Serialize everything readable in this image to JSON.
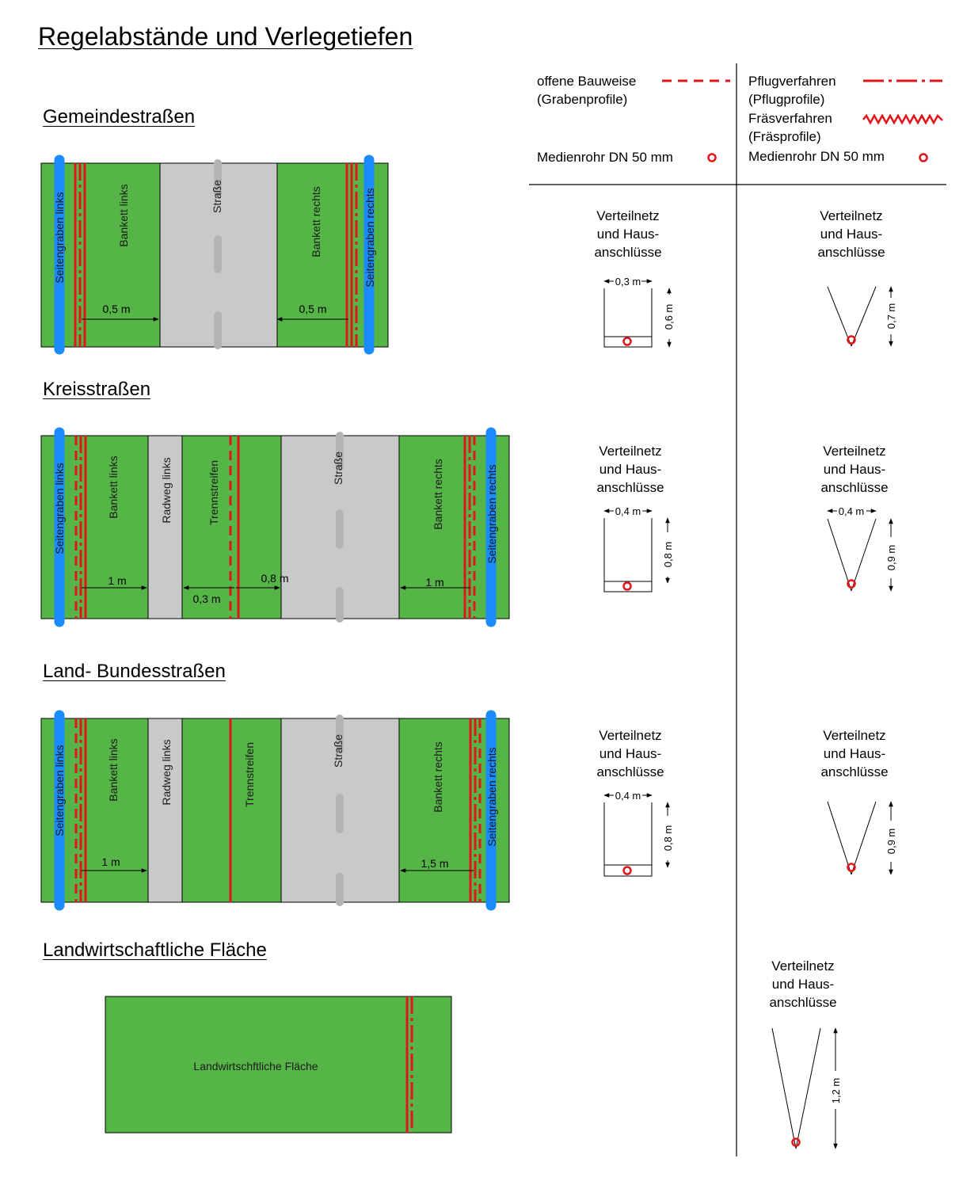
{
  "title": "Regelabstände und Verlegetiefen",
  "colors": {
    "green": "#56b547",
    "grey": "#c8c9cb",
    "blue": "#1a8cff",
    "red": "#e0161b",
    "black": "#000000"
  },
  "legend": {
    "open": {
      "label1": "offene Bauweise",
      "label2": "(Grabenprofile)"
    },
    "plough": {
      "label1": "Pflugverfahren",
      "label2": "(Pflugprofile)"
    },
    "mill": {
      "label1": "Fräsverfahren",
      "label2": "(Fräsprofile)"
    },
    "pipe_left": "Medienrohr DN 50 mm",
    "pipe_right": "Medienrohr DN 50 mm"
  },
  "sections": {
    "gemeinde": {
      "title": "Gemeindestraßen",
      "labels": {
        "ditch_left": "Seitengraben links",
        "bankett_left": "Bankett links",
        "road": "Straße",
        "bankett_right": "Bankett rechts",
        "ditch_right": "Seitengraben rechts"
      },
      "dims": {
        "left": "0,5 m",
        "right": "0,5 m"
      },
      "profile_open": {
        "label": [
          "Verteilnetz",
          "und Haus-",
          "anschlüsse"
        ],
        "width": "0,3 m",
        "depth": "0,6 m"
      },
      "profile_plough": {
        "label": [
          "Verteilnetz",
          "und Haus-",
          "anschlüsse"
        ],
        "depth": "0,7 m"
      }
    },
    "kreis": {
      "title": "Kreisstraßen",
      "labels": {
        "ditch_left": "Seitengraben links",
        "bankett_left": "Bankett links",
        "bike_left": "Radweg links",
        "separator": "Trennstreifen",
        "road": "Straße",
        "bankett_right": "Bankett rechts",
        "ditch_right": "Seitengraben rechts"
      },
      "dims": {
        "left": "1 m",
        "sep_left": "0,3 m",
        "sep_right": "0,8 m",
        "right": "1 m"
      },
      "profile_open": {
        "label": [
          "Verteilnetz",
          "und Haus-",
          "anschlüsse"
        ],
        "width": "0,4 m",
        "depth": "0,8 m"
      },
      "profile_plough": {
        "label": [
          "Verteilnetz",
          "und Haus-",
          "anschlüsse"
        ],
        "width": "0,4 m",
        "depth": "0,9 m"
      }
    },
    "land": {
      "title": "Land- Bundesstraßen",
      "labels": {
        "ditch_left": "Seitengraben links",
        "bankett_left": "Bankett links",
        "bike_left": "Radweg links",
        "separator": "Trennstreifen",
        "road": "Straße",
        "bankett_right": "Bankett rechts",
        "ditch_right": "Seitengraben rechts"
      },
      "dims": {
        "left": "1 m",
        "right": "1,5 m"
      },
      "profile_open": {
        "label": [
          "Verteilnetz",
          "und Haus-",
          "anschlüsse"
        ],
        "width": "0,4 m",
        "depth": "0,8 m"
      },
      "profile_plough": {
        "label": [
          "Verteilnetz",
          "und Haus-",
          "anschlüsse"
        ],
        "depth": "0,9 m"
      }
    },
    "agri": {
      "title": "Landwirtschaftliche Fläche",
      "field_label": "Landwirtschftliche Fläche",
      "profile_plough": {
        "label": [
          "Verteilnetz",
          "und Haus-",
          "anschlüsse"
        ],
        "depth": "1,2 m"
      }
    }
  }
}
